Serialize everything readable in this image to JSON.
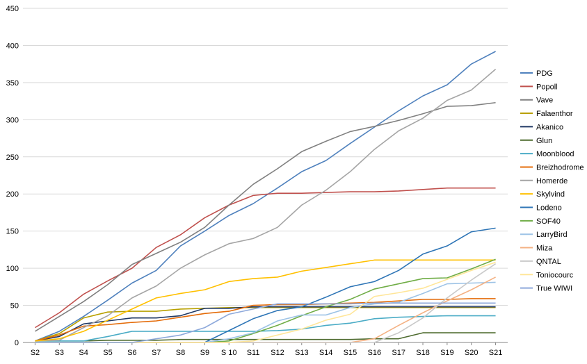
{
  "chart_data": {
    "type": "line",
    "title": "",
    "xlabel": "",
    "ylabel": "",
    "ylim": [
      0,
      450
    ],
    "yticks": [
      0,
      50,
      100,
      150,
      200,
      250,
      300,
      350,
      400,
      450
    ],
    "grid": "horizontal",
    "legend": "right",
    "categories": [
      "S2",
      "S3",
      "S4",
      "S5",
      "S6",
      "S7",
      "S8",
      "S9",
      "S 10",
      "S11",
      "S12",
      "S13",
      "S14",
      "S15",
      "S16",
      "S17",
      "S18",
      "S19",
      "S20",
      "S21"
    ],
    "series": [
      {
        "name": "PDG",
        "color": "#4f81bd",
        "values": [
          2,
          15,
          35,
          57,
          80,
          97,
          130,
          150,
          171,
          187,
          208,
          230,
          245,
          268,
          290,
          312,
          332,
          347,
          375,
          392
        ]
      },
      {
        "name": "Popoll",
        "color": "#c0504d",
        "values": [
          20,
          40,
          65,
          83,
          100,
          128,
          145,
          168,
          185,
          198,
          201,
          201,
          202,
          203,
          203,
          204,
          206,
          208,
          208,
          208
        ]
      },
      {
        "name": "Vave",
        "color": "#808080",
        "values": [
          15,
          35,
          55,
          78,
          105,
          120,
          135,
          155,
          185,
          213,
          234,
          257,
          271,
          284,
          291,
          299,
          308,
          318,
          319,
          323
        ]
      },
      {
        "name": "Falaenthor",
        "color": "#b8a000",
        "values": [
          2,
          12,
          33,
          41,
          42,
          42,
          45,
          46,
          47,
          47,
          47,
          47,
          47,
          47,
          47,
          47,
          47,
          47,
          47,
          47
        ]
      },
      {
        "name": "Akanico",
        "color": "#1f3864",
        "values": [
          2,
          8,
          25,
          29,
          33,
          33,
          36,
          46,
          46,
          48,
          48,
          48,
          48,
          48,
          48,
          48,
          48,
          48,
          48,
          48
        ]
      },
      {
        "name": "Glun",
        "color": "#4e6b2f",
        "values": [
          2,
          2,
          2,
          3,
          3,
          3,
          4,
          4,
          4,
          4,
          4,
          4,
          4,
          4,
          5,
          5,
          13,
          13,
          13,
          13
        ]
      },
      {
        "name": "Moonblood",
        "color": "#4bacc6",
        "values": [
          2,
          2,
          2,
          8,
          15,
          15,
          15,
          15,
          15,
          15,
          16,
          18,
          23,
          26,
          32,
          34,
          35,
          36,
          36,
          36
        ]
      },
      {
        "name": "Breizhodrome",
        "color": "#e46c0a",
        "values": [
          2,
          10,
          22,
          24,
          27,
          29,
          34,
          39,
          42,
          50,
          51,
          51,
          52,
          53,
          54,
          56,
          58,
          58,
          59,
          59
        ]
      },
      {
        "name": "Homerde",
        "color": "#a5a5a5",
        "values": [
          2,
          3,
          20,
          36,
          60,
          76,
          100,
          118,
          133,
          140,
          155,
          185,
          205,
          230,
          260,
          285,
          302,
          326,
          340,
          368
        ]
      },
      {
        "name": "Skylvind",
        "color": "#ffc000",
        "values": [
          2,
          5,
          15,
          30,
          45,
          60,
          66,
          71,
          82,
          86,
          88,
          96,
          101,
          106,
          111,
          111,
          111,
          111,
          111,
          111
        ]
      },
      {
        "name": "Lodeno",
        "color": "#2e75b6",
        "values": [
          0,
          0,
          0,
          0,
          0,
          0,
          0,
          0,
          16,
          32,
          43,
          48,
          61,
          75,
          82,
          97,
          119,
          130,
          149,
          154
        ]
      },
      {
        "name": "SOF40",
        "color": "#70ad47",
        "values": [
          0,
          0,
          0,
          0,
          0,
          0,
          0,
          0,
          2,
          12,
          23,
          36,
          48,
          58,
          72,
          79,
          86,
          87,
          99,
          112
        ]
      },
      {
        "name": "LarryBird",
        "color": "#9dc3e6",
        "values": [
          0,
          0,
          0,
          0,
          0,
          0,
          0,
          0,
          5,
          13,
          29,
          37,
          37,
          47,
          52,
          54,
          66,
          79,
          80,
          81
        ]
      },
      {
        "name": "Miza",
        "color": "#f4b183",
        "values": [
          0,
          0,
          0,
          0,
          0,
          0,
          0,
          0,
          0,
          0,
          0,
          0,
          0,
          0,
          5,
          23,
          40,
          56,
          71,
          88
        ]
      },
      {
        "name": "QNTAL",
        "color": "#c9c9c9",
        "values": [
          0,
          0,
          0,
          0,
          0,
          0,
          0,
          0,
          0,
          0,
          0,
          0,
          0,
          0,
          0,
          13,
          33,
          60,
          84,
          106
        ]
      },
      {
        "name": "Toniocourc",
        "color": "#ffe699",
        "values": [
          0,
          0,
          0,
          0,
          0,
          0,
          0,
          0,
          0,
          2,
          10,
          18,
          30,
          38,
          62,
          67,
          73,
          85,
          97,
          108
        ]
      },
      {
        "name": "True WIWI",
        "color": "#8ea9db",
        "values": [
          0,
          0,
          0,
          0,
          0,
          5,
          10,
          20,
          38,
          45,
          52,
          52,
          52,
          52,
          53,
          53,
          53,
          53,
          53,
          53
        ]
      }
    ]
  }
}
